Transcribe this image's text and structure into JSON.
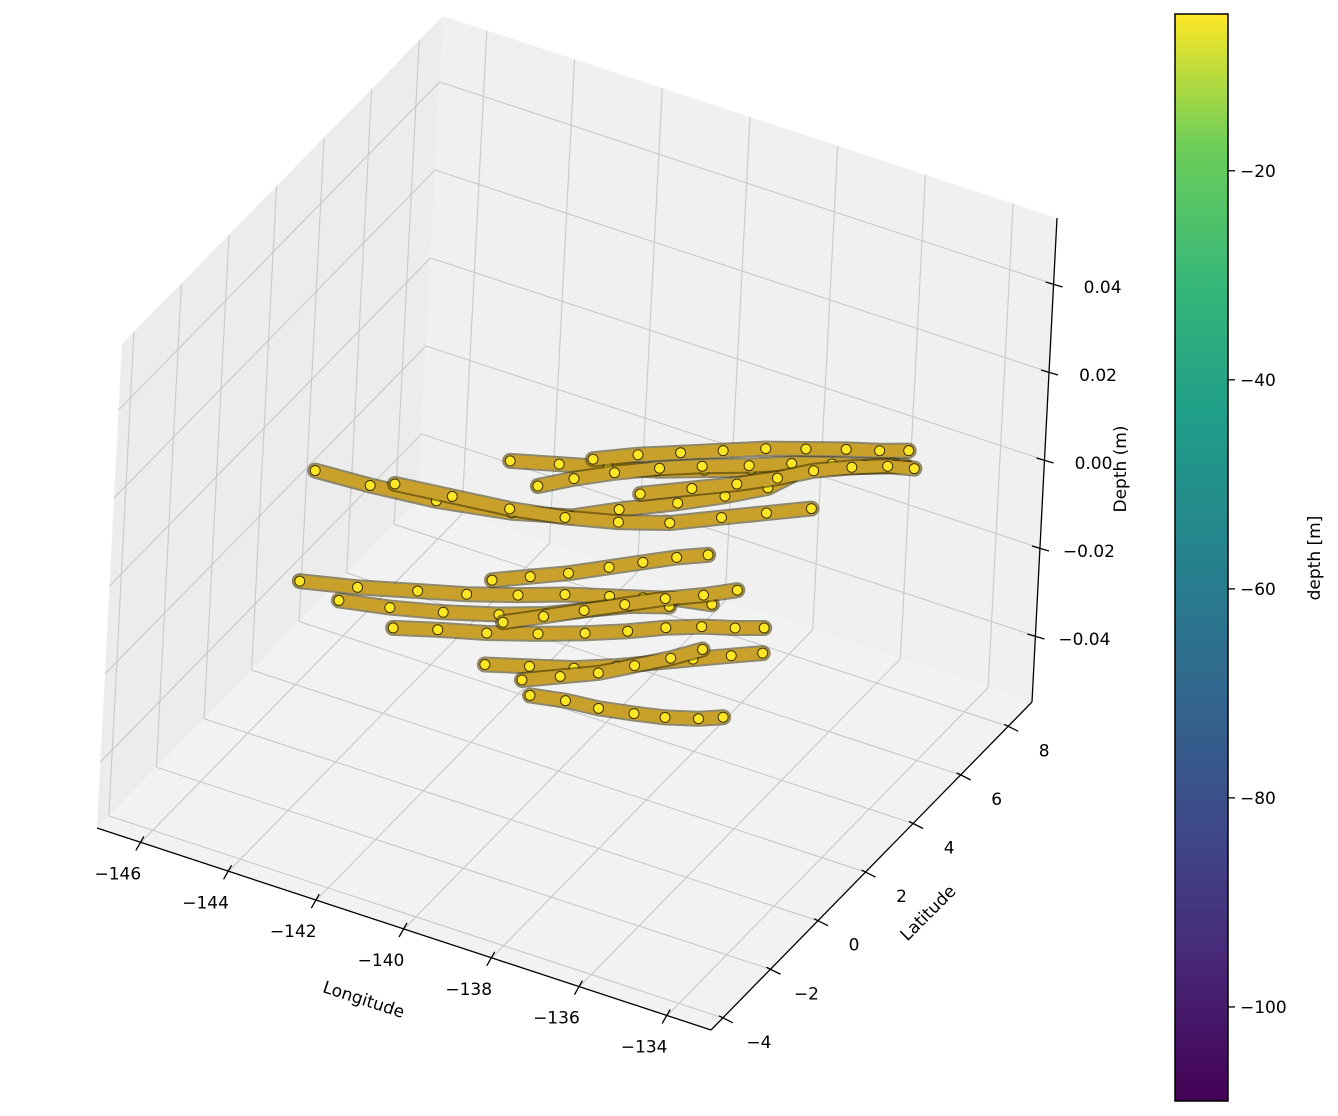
{
  "chart_data": {
    "type": "scatter",
    "title": "",
    "projection": "3d",
    "axes": {
      "x": {
        "label": "Longitude",
        "ticks": [
          "−146",
          "−144",
          "−142",
          "−140",
          "−138",
          "−136",
          "−134"
        ],
        "range": [
          -147,
          -133
        ]
      },
      "y": {
        "label": "Latitude",
        "ticks": [
          "−4",
          "−2",
          "0",
          "2",
          "4",
          "6",
          "8"
        ],
        "range": [
          -4.5,
          9
        ]
      },
      "z": {
        "label": "Depth (m)",
        "ticks": [
          "−0.04",
          "−0.02",
          "0.00",
          "0.02",
          "0.04"
        ],
        "range": [
          -0.055,
          0.055
        ]
      }
    },
    "grid": true,
    "marker_color": "#fde725",
    "marker_edge_color": "#3d3100",
    "colorbar": {
      "label": "depth [m]",
      "colormap": "viridis",
      "range": [
        -109,
        -5
      ],
      "ticks": [
        "−20",
        "−40",
        "−60",
        "−80",
        "−100"
      ],
      "tick_values": [
        -20,
        -40,
        -60,
        -80,
        -100
      ]
    },
    "data": {
      "depth_all_points": 0,
      "tracks": [
        {
          "lon": [
            -145.4,
            -144.2,
            -142.8,
            -141.3,
            -140.2,
            -139.5,
            -138.6,
            -137.9,
            -137.3,
            -137.1
          ],
          "lat": [
            1.2,
            1.3,
            1.5,
            1.9,
            2.4,
            3.1,
            3.9,
            4.6,
            5.3,
            5.9
          ]
        },
        {
          "lon": [
            -143.8,
            -142.6,
            -141.4,
            -140.3,
            -139.3,
            -138.4,
            -137.6,
            -136.9,
            -136.2
          ],
          "lat": [
            1.6,
            1.8,
            2.0,
            2.3,
            2.7,
            3.2,
            3.9,
            4.5,
            5.1
          ]
        },
        {
          "lon": [
            -142.2,
            -141.3,
            -140.4,
            -139.5,
            -138.7,
            -137.9,
            -137.2,
            -136.5,
            -135.9,
            -135.3
          ],
          "lat": [
            3.5,
            3.9,
            4.3,
            4.7,
            5.2,
            5.7,
            6.1,
            6.6,
            7.0,
            7.4
          ]
        },
        {
          "lon": [
            -140.8,
            -140.1,
            -139.4,
            -138.7,
            -138.0,
            -137.3,
            -136.6,
            -136.0,
            -135.5
          ],
          "lat": [
            4.4,
            5.0,
            5.5,
            6.0,
            6.5,
            6.9,
            7.3,
            7.6,
            7.9
          ]
        },
        {
          "lon": [
            -141.3,
            -140.8,
            -140.2,
            -139.5,
            -138.8,
            -138.0,
            -137.3,
            -136.6,
            -136.0,
            -135.5
          ],
          "lat": [
            3.0,
            3.6,
            4.2,
            4.8,
            5.3,
            5.8,
            6.3,
            6.7,
            7.0,
            7.3
          ]
        },
        {
          "lon": [
            -139.4,
            -138.6,
            -137.9,
            -137.3,
            -136.8,
            -136.2,
            -135.6,
            -135.1
          ],
          "lat": [
            3.8,
            4.5,
            5.1,
            5.7,
            6.3,
            6.8,
            7.2,
            7.4
          ]
        },
        {
          "lon": [
            -143.8,
            -142.7,
            -141.6,
            -140.7,
            -139.8,
            -139.0,
            -138.2,
            -137.6,
            -137.0,
            -136.3
          ],
          "lat": [
            -2.4,
            -2.0,
            -1.5,
            -1.1,
            -0.6,
            -0.1,
            0.3,
            0.6,
            0.9,
            1.1
          ]
        },
        {
          "lon": [
            -142.8,
            -141.8,
            -140.8,
            -139.8,
            -139.0,
            -138.3,
            -137.7,
            -137.0
          ],
          "lat": [
            -2.6,
            -2.3,
            -1.9,
            -1.4,
            -0.9,
            -0.3,
            0.2,
            0.6
          ]
        },
        {
          "lon": [
            -141.4,
            -140.6,
            -139.7,
            -138.8,
            -138.0,
            -137.3,
            -136.7,
            -136.1,
            -135.5,
            -135.0
          ],
          "lat": [
            -2.9,
            -2.5,
            -2.1,
            -1.6,
            -1.1,
            -0.6,
            -0.1,
            0.3,
            0.6,
            0.9
          ]
        },
        {
          "lon": [
            -139.2,
            -138.4,
            -137.6,
            -136.9,
            -136.3,
            -135.7,
            -135.1,
            -134.6
          ],
          "lat": [
            -3.1,
            -2.7,
            -2.3,
            -1.8,
            -1.3,
            -0.8,
            -0.3,
            0.1
          ]
        },
        {
          "lon": [
            -137.9,
            -137.2,
            -136.5,
            -135.8,
            -135.2,
            -134.6,
            -134.2
          ],
          "lat": [
            -3.6,
            -3.4,
            -3.3,
            -3.1,
            -2.9,
            -2.6,
            -2.3
          ]
        },
        {
          "lon": [
            -140.5,
            -139.9,
            -139.3,
            -138.7,
            -138.2,
            -137.7,
            -137.2
          ],
          "lat": [
            -0.4,
            0.1,
            0.6,
            1.2,
            1.7,
            2.2,
            2.6
          ]
        },
        {
          "lon": [
            -139.6,
            -139.0,
            -138.4,
            -137.8,
            -137.2,
            -136.6,
            -136.1
          ],
          "lat": [
            -1.6,
            -1.0,
            -0.4,
            0.2,
            0.8,
            1.3,
            1.8
          ]
        },
        {
          "lon": [
            -138.3,
            -137.7,
            -137.1,
            -136.6,
            -136.1,
            -135.7
          ],
          "lat": [
            -3.2,
            -2.7,
            -2.2,
            -1.6,
            -1.0,
            -0.4
          ]
        }
      ]
    }
  }
}
